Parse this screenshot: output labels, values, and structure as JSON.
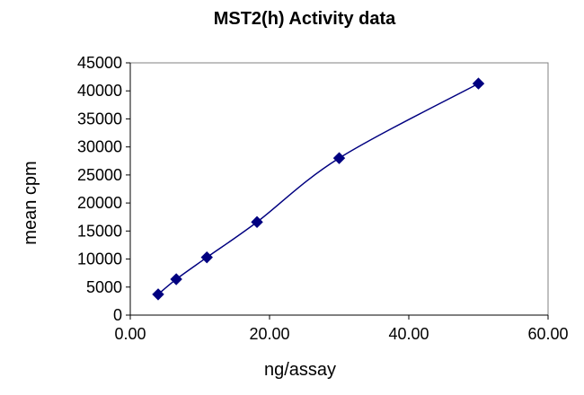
{
  "chart_data": {
    "type": "scatter",
    "title": "MST2(h) Activity data",
    "xlabel": "ng/assay",
    "ylabel": "mean cpm",
    "xlim": [
      0,
      60
    ],
    "ylim": [
      0,
      45000
    ],
    "x_ticks": [
      "0.00",
      "20.00",
      "40.00",
      "60.00"
    ],
    "x_tick_values": [
      0,
      20,
      40,
      60
    ],
    "y_ticks": [
      "0",
      "5000",
      "10000",
      "15000",
      "20000",
      "25000",
      "30000",
      "35000",
      "40000",
      "45000"
    ],
    "y_tick_values": [
      0,
      5000,
      10000,
      15000,
      20000,
      25000,
      30000,
      35000,
      40000,
      45000
    ],
    "grid": false,
    "legend": "none",
    "series": [
      {
        "x": [
          4,
          6.6,
          11,
          18.2,
          30,
          50
        ],
        "y": [
          3700,
          6400,
          10300,
          16600,
          28000,
          41300
        ],
        "marker": "diamond",
        "smoothed_line": true,
        "color": "#000080"
      }
    ]
  }
}
